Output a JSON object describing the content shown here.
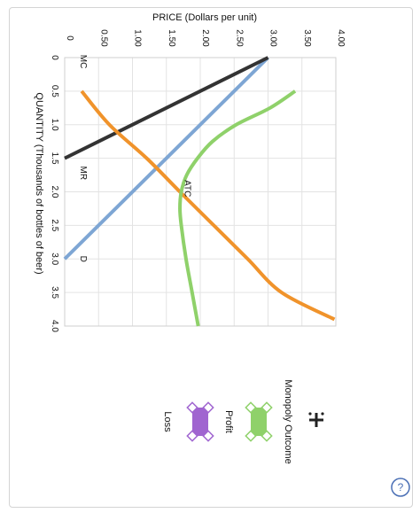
{
  "chart_data": {
    "type": "line",
    "orientation": "rotated-90-clockwise",
    "xlabel": "QUANTITY (Thousands of bottles of beer)",
    "ylabel": "PRICE (Dollars per unit)",
    "xlim": [
      0,
      4.0
    ],
    "ylim": [
      0,
      4.0
    ],
    "x_ticks": [
      "0",
      "0.5",
      "1.0",
      "1.5",
      "2.0",
      "2.5",
      "3.0",
      "3.5",
      "4.0"
    ],
    "y_ticks": [
      "0",
      "0.50",
      "1.00",
      "1.50",
      "2.00",
      "2.50",
      "3.00",
      "3.50",
      "4.00"
    ],
    "grid": true,
    "series": [
      {
        "name": "D",
        "color": "#7ea6d4",
        "points": [
          [
            0,
            3.0
          ],
          [
            3.0,
            0
          ]
        ]
      },
      {
        "name": "MR",
        "color": "#333333",
        "points": [
          [
            0,
            3.0
          ],
          [
            1.5,
            0
          ]
        ]
      },
      {
        "name": "MC",
        "color": "#f0932b",
        "points": [
          [
            0.5,
            0.25
          ],
          [
            1.0,
            0.66
          ],
          [
            1.5,
            1.21
          ],
          [
            2.0,
            1.7
          ],
          [
            2.5,
            2.2
          ],
          [
            3.0,
            2.7
          ],
          [
            3.5,
            3.2
          ],
          [
            3.9,
            3.98
          ]
        ]
      },
      {
        "name": "ATC",
        "color": "#8fd16a",
        "points": [
          [
            0.5,
            3.4
          ],
          [
            0.75,
            3.03
          ],
          [
            1.0,
            2.53
          ],
          [
            1.25,
            2.18
          ],
          [
            1.5,
            1.96
          ],
          [
            1.75,
            1.8
          ],
          [
            2.0,
            1.72
          ],
          [
            2.25,
            1.7
          ],
          [
            2.5,
            1.72
          ],
          [
            3.0,
            1.79
          ],
          [
            3.5,
            1.88
          ],
          [
            4.0,
            1.97
          ]
        ]
      }
    ],
    "curve_labels": [
      {
        "text": "D",
        "x": 3.0,
        "y": 0.18
      },
      {
        "text": "MR",
        "x": 1.72,
        "y": 0.18
      },
      {
        "text": "MC",
        "x": 0.06,
        "y": 0.18
      },
      {
        "text": "ATC",
        "x": 1.95,
        "y": 1.72
      }
    ]
  },
  "legend": {
    "title": "Monopoly Outcome",
    "items": [
      {
        "label": "Profit",
        "color": "#8fd16a"
      },
      {
        "label": "Loss",
        "color": "#a065d0"
      }
    ]
  },
  "help": {
    "symbol": "?"
  }
}
